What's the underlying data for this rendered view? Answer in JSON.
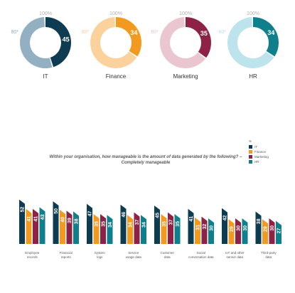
{
  "colors": {
    "IT": "#0d3b52",
    "Finance": "#f29a1f",
    "Marketing": "#8e2146",
    "HR": "#0f7f8c",
    "IT_light": "#93afc2",
    "Finance_light": "#fbd29b",
    "Marketing_light": "#e9c6d0",
    "HR_light": "#bde3ec"
  },
  "chart_data": [
    {
      "type": "pie",
      "subtype": "donut",
      "ring_max_label": "100%",
      "ring_min_label": "80*",
      "items": [
        {
          "name": "IT",
          "value": 45
        },
        {
          "name": "Finance",
          "value": 34
        },
        {
          "name": "Marketing",
          "value": 35
        },
        {
          "name": "HR",
          "value": 34
        }
      ]
    },
    {
      "type": "bar",
      "title": "Within your organisation, how manageable is the amount of data generated by the following? – Completely manageable",
      "legend_title": "%",
      "legend_placement": "top-right",
      "categories": [
        "Employee records",
        "Financial reports",
        "System logs",
        "Service usage data",
        "Customer data",
        "Social conversation data",
        "IoT and other sensor data",
        "Third-party data"
      ],
      "category_lines": [
        [
          "Employee",
          "records"
        ],
        [
          "Financial",
          "reports"
        ],
        [
          "System",
          "logs"
        ],
        [
          "Service",
          "usage data"
        ],
        [
          "Customer",
          "data"
        ],
        [
          "Social",
          "conversation data"
        ],
        [
          "IoT and other",
          "sensor data"
        ],
        [
          "Third-party",
          "data"
        ]
      ],
      "series": [
        {
          "name": "IT",
          "values": [
            52,
            50,
            47,
            46,
            45,
            41,
            42,
            38
          ]
        },
        {
          "name": "Finance",
          "values": [
            41,
            40,
            35,
            34,
            35,
            31,
            29,
            29
          ]
        },
        {
          "name": "Marketing",
          "values": [
            41,
            39,
            35,
            37,
            37,
            32,
            30,
            30
          ]
        },
        {
          "name": "HR",
          "values": [
            43,
            38,
            34,
            34,
            35,
            30,
            30,
            27
          ]
        }
      ]
    }
  ]
}
